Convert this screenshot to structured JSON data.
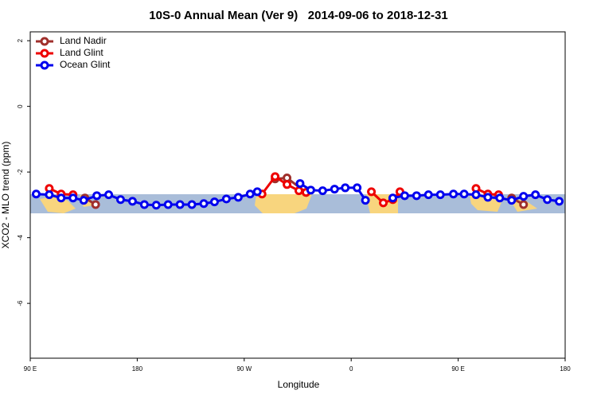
{
  "chart_data": {
    "type": "line",
    "title": "10S-0 Annual Mean (Ver 9)   2014-09-06 to 2018-12-31",
    "x_label": "Longitude",
    "y_label": "XCO2 - MLO trend (ppm)",
    "xlim": [
      90,
      540
    ],
    "ylim": [
      -7.67,
      2.27
    ],
    "xticks": [
      {
        "value": 90,
        "label": "90 E"
      },
      {
        "value": 180,
        "label": "180"
      },
      {
        "value": 270,
        "label": "90 W"
      },
      {
        "value": 360,
        "label": "0"
      },
      {
        "value": 450,
        "label": "90 E"
      },
      {
        "value": 540,
        "label": "180"
      }
    ],
    "yticks": [
      2,
      0,
      -2,
      -4,
      -6
    ],
    "legend": "top-left",
    "series": [
      {
        "name": "Land Nadir",
        "color": "#a0302c",
        "x": [
          136,
          145,
          null,
          296,
          306,
          322,
          null,
          495,
          505
        ],
        "values": [
          -2.79,
          -2.99,
          null,
          -2.21,
          -2.18,
          -2.62,
          null,
          -2.79,
          -2.99
        ]
      },
      {
        "name": "Land Glint",
        "color": "#ee0000",
        "x": [
          106,
          116,
          126,
          null,
          285,
          296,
          306,
          316,
          322,
          null,
          377,
          387,
          395,
          401,
          null,
          465,
          475,
          484
        ],
        "values": [
          -2.5,
          -2.67,
          -2.69,
          null,
          -2.67,
          -2.14,
          -2.38,
          -2.57,
          -2.62,
          null,
          -2.6,
          -2.94,
          -2.84,
          -2.6,
          null,
          -2.5,
          -2.67,
          -2.69
        ]
      },
      {
        "name": "Ocean Glint",
        "color": "#0000ee",
        "x": [
          95,
          106,
          116,
          126,
          135,
          146,
          156,
          166,
          176,
          186,
          196,
          206,
          216,
          226,
          236,
          245,
          255,
          265,
          275,
          281,
          null,
          317,
          326,
          336,
          346,
          355,
          365,
          372,
          null,
          395,
          405,
          415,
          425,
          435,
          446,
          455,
          465,
          475,
          485,
          495,
          505,
          515,
          525,
          535
        ],
        "values": [
          -2.67,
          -2.69,
          -2.79,
          -2.79,
          -2.86,
          -2.72,
          -2.69,
          -2.84,
          -2.89,
          -2.99,
          -3.01,
          -2.99,
          -2.99,
          -2.99,
          -2.96,
          -2.91,
          -2.82,
          -2.77,
          -2.67,
          -2.6,
          null,
          -2.35,
          -2.55,
          -2.57,
          -2.52,
          -2.48,
          -2.48,
          -2.86,
          null,
          -2.79,
          -2.72,
          -2.72,
          -2.69,
          -2.69,
          -2.67,
          -2.67,
          -2.69,
          -2.77,
          -2.79,
          -2.86,
          -2.74,
          -2.69,
          -2.84,
          -2.89
        ]
      }
    ]
  }
}
